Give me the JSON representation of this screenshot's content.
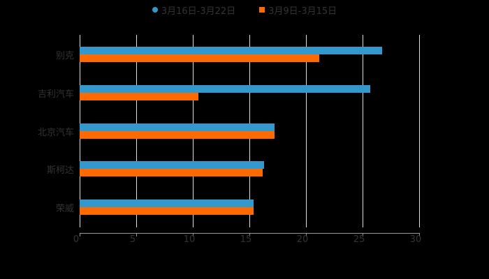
{
  "chart_data": {
    "type": "bar",
    "orientation": "horizontal",
    "title": "",
    "xlabel": "",
    "ylabel": "",
    "xlim": [
      0,
      30
    ],
    "x_ticks": [
      "0",
      "5",
      "10",
      "15",
      "20",
      "25",
      "30"
    ],
    "grid": true,
    "legend_position": "top",
    "categories": [
      "别克",
      "吉利汽车",
      "北京汽车",
      "斯柯达",
      "荣威"
    ],
    "series": [
      {
        "name": "3月16日-3月22日",
        "color": "#3398cc",
        "marker": "circle",
        "values": [
          26.7,
          25.7,
          17.2,
          16.3,
          15.4
        ]
      },
      {
        "name": "3月9日-3月15日",
        "color": "#ff6a00",
        "marker": "square",
        "values": [
          21.2,
          10.5,
          17.2,
          16.2,
          15.4
        ]
      }
    ]
  },
  "legend": {
    "series1_label": "3月16日-3月22日",
    "series2_label": "3月9日-3月15日"
  }
}
